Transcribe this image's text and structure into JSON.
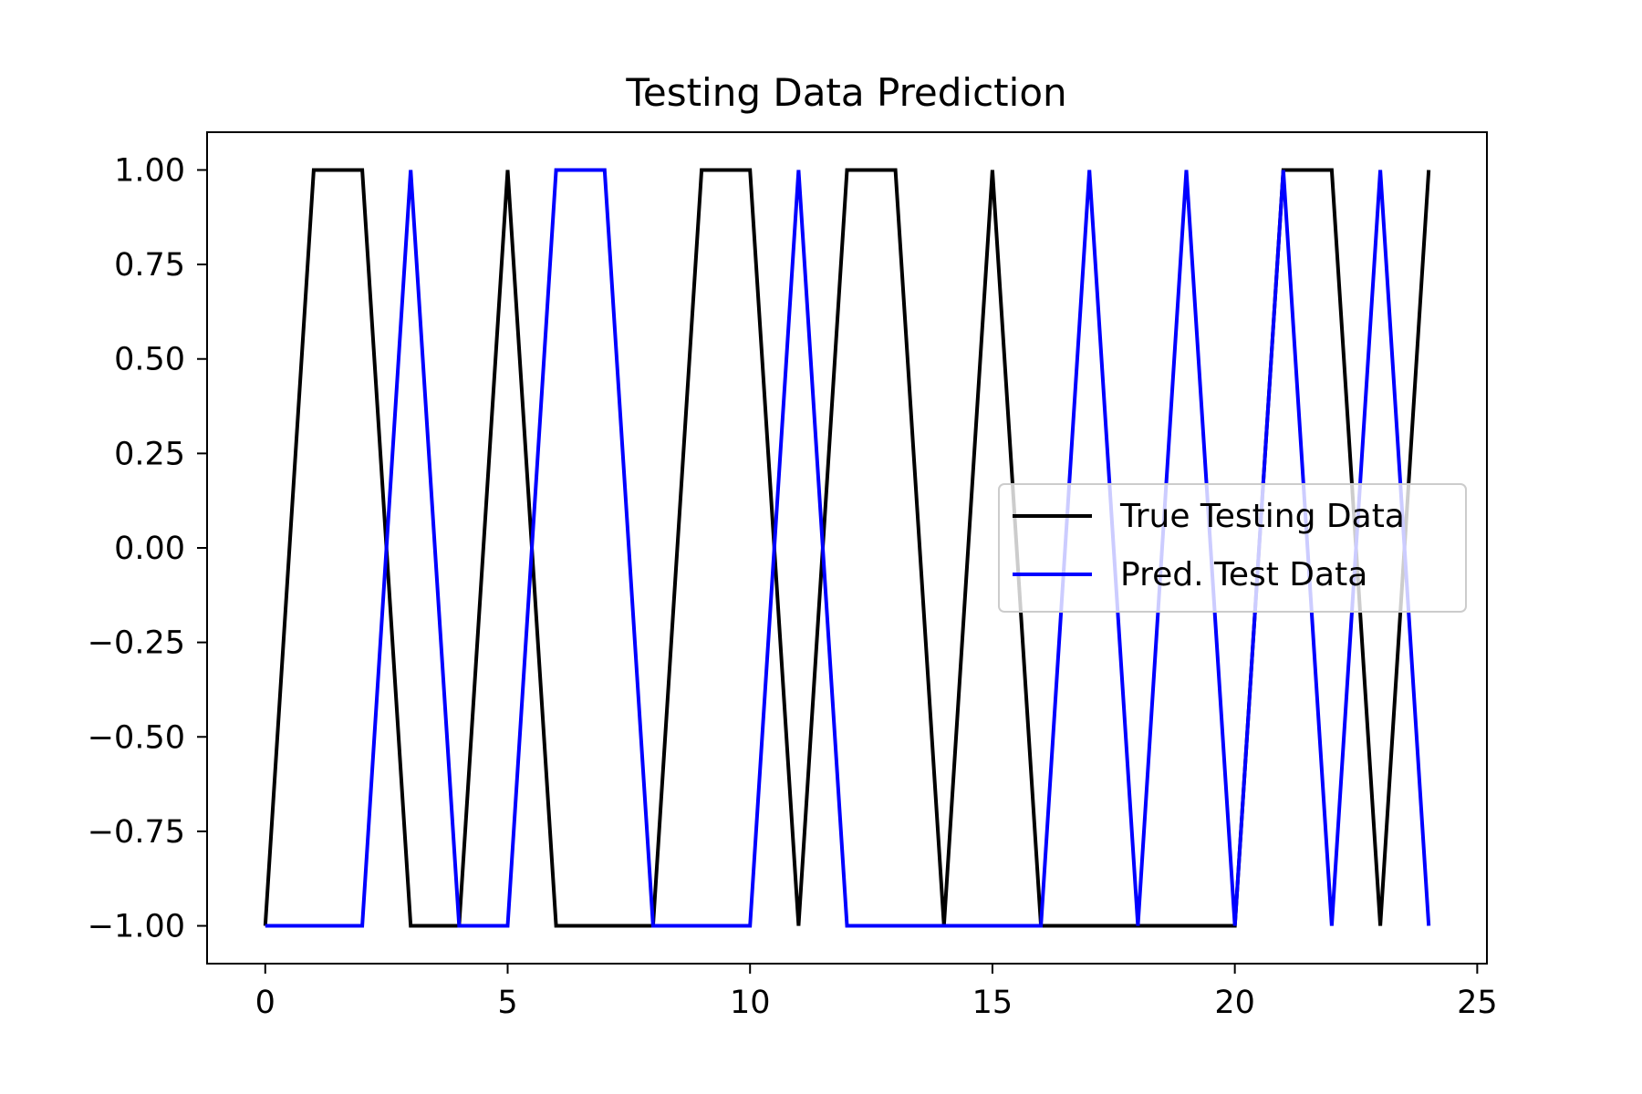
{
  "chart_data": {
    "type": "line",
    "title": "Testing Data Prediction",
    "xlabel": "",
    "ylabel": "",
    "xlim": [
      -1.2,
      25.2
    ],
    "ylim": [
      -1.1,
      1.1
    ],
    "xticks": [
      0,
      5,
      10,
      15,
      20,
      25
    ],
    "yticks": [
      1.0,
      0.75,
      0.5,
      0.25,
      0.0,
      -0.25,
      -0.5,
      -0.75,
      -1.0
    ],
    "ytick_labels": [
      "1.00",
      "0.75",
      "0.50",
      "0.25",
      "0.00",
      "−0.25",
      "−0.50",
      "−0.75",
      "−1.00"
    ],
    "xtick_labels": [
      "0",
      "5",
      "10",
      "15",
      "20",
      "25"
    ],
    "grid": false,
    "legend_position": "center-right",
    "x": [
      0,
      1,
      2,
      3,
      4,
      5,
      6,
      7,
      8,
      9,
      10,
      11,
      12,
      13,
      14,
      15,
      16,
      17,
      18,
      19,
      20,
      21,
      22,
      23,
      24
    ],
    "series": [
      {
        "name": "True Testing Data",
        "color": "#000000",
        "values": [
          -1,
          1,
          1,
          -1,
          -1,
          1,
          -1,
          -1,
          -1,
          1,
          1,
          -1,
          1,
          1,
          -1,
          1,
          -1,
          -1,
          -1,
          -1,
          -1,
          1,
          1,
          -1,
          1
        ]
      },
      {
        "name": "Pred. Test Data",
        "color": "#0000ff",
        "values": [
          -1,
          -1,
          -1,
          1,
          -1,
          -1,
          1,
          1,
          -1,
          -1,
          -1,
          1,
          -1,
          -1,
          -1,
          -1,
          -1,
          1,
          -1,
          1,
          -1,
          1,
          -1,
          1,
          -1
        ]
      }
    ]
  }
}
